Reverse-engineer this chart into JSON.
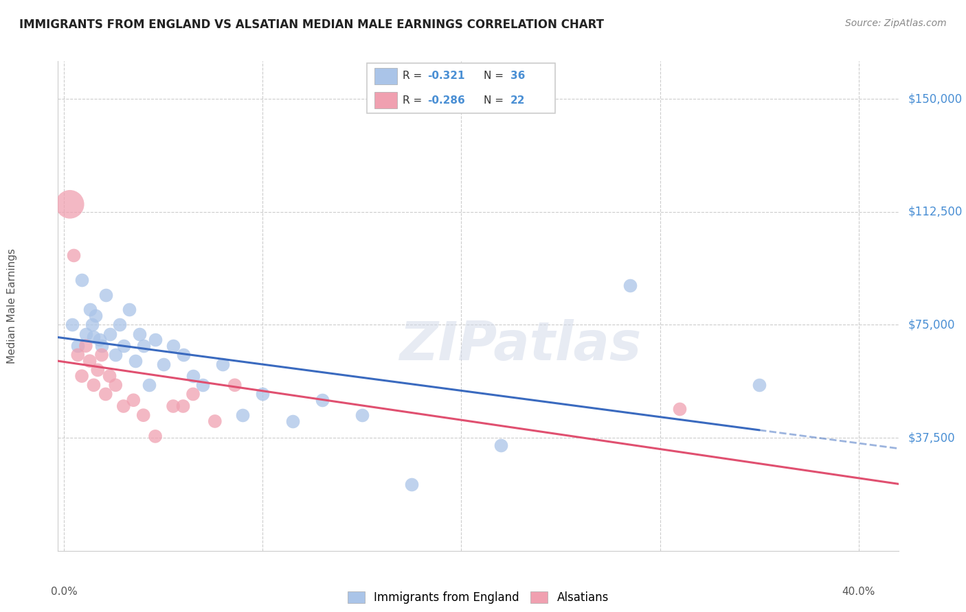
{
  "title": "IMMIGRANTS FROM ENGLAND VS ALSATIAN MEDIAN MALE EARNINGS CORRELATION CHART",
  "source": "Source: ZipAtlas.com",
  "ylabel": "Median Male Earnings",
  "ytick_labels": [
    "$37,500",
    "$75,000",
    "$112,500",
    "$150,000"
  ],
  "ytick_values": [
    37500,
    75000,
    112500,
    150000
  ],
  "ymin": 0,
  "ymax": 162500,
  "xmin": -0.003,
  "xmax": 0.42,
  "england_R": "-0.321",
  "england_N": "36",
  "alsatian_R": "-0.286",
  "alsatian_N": "22",
  "england_color": "#aac4e8",
  "england_line_color": "#3a6abf",
  "alsatian_color": "#f0a0b0",
  "alsatian_line_color": "#e05070",
  "england_points_x": [
    0.004,
    0.007,
    0.009,
    0.011,
    0.013,
    0.014,
    0.015,
    0.016,
    0.018,
    0.019,
    0.021,
    0.023,
    0.026,
    0.028,
    0.03,
    0.033,
    0.036,
    0.038,
    0.04,
    0.043,
    0.046,
    0.05,
    0.055,
    0.06,
    0.065,
    0.07,
    0.08,
    0.09,
    0.1,
    0.115,
    0.13,
    0.15,
    0.175,
    0.22,
    0.285,
    0.35
  ],
  "england_points_y": [
    75000,
    68000,
    90000,
    72000,
    80000,
    75000,
    71000,
    78000,
    70000,
    68000,
    85000,
    72000,
    65000,
    75000,
    68000,
    80000,
    63000,
    72000,
    68000,
    55000,
    70000,
    62000,
    68000,
    65000,
    58000,
    55000,
    62000,
    45000,
    52000,
    43000,
    50000,
    45000,
    22000,
    35000,
    88000,
    55000
  ],
  "alsatian_points_x": [
    0.003,
    0.005,
    0.007,
    0.009,
    0.011,
    0.013,
    0.015,
    0.017,
    0.019,
    0.021,
    0.023,
    0.026,
    0.03,
    0.035,
    0.04,
    0.046,
    0.055,
    0.06,
    0.065,
    0.076,
    0.086,
    0.31
  ],
  "alsatian_points_y": [
    115000,
    98000,
    65000,
    58000,
    68000,
    63000,
    55000,
    60000,
    65000,
    52000,
    58000,
    55000,
    48000,
    50000,
    45000,
    38000,
    48000,
    48000,
    52000,
    43000,
    55000,
    47000
  ],
  "marker_size": 200,
  "alsatian_big_idx": 0,
  "alsatian_big_size": 900
}
